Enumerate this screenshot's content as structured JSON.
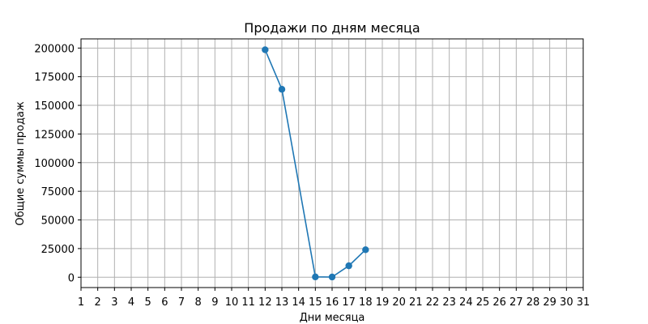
{
  "chart_data": {
    "type": "line",
    "title": "Продажи по дням месяца",
    "xlabel": "Дни месяца",
    "ylabel": "Общие суммы продаж",
    "x_ticks": [
      1,
      2,
      3,
      4,
      5,
      6,
      7,
      8,
      9,
      10,
      11,
      12,
      13,
      14,
      15,
      16,
      17,
      18,
      19,
      20,
      21,
      22,
      23,
      24,
      25,
      26,
      27,
      28,
      29,
      30,
      31
    ],
    "y_ticks": [
      0,
      25000,
      50000,
      75000,
      100000,
      125000,
      150000,
      175000,
      200000
    ],
    "xlim": [
      1,
      31
    ],
    "ylim": [
      -9000,
      208000
    ],
    "grid": true,
    "series": [
      {
        "x": [
          12,
          13,
          15,
          16,
          17,
          18
        ],
        "y": [
          198500,
          164000,
          300,
          200,
          10000,
          24000
        ]
      }
    ],
    "colors": {
      "line": "#1f77b4",
      "grid": "#b0b0b0",
      "axis": "#000000"
    }
  }
}
